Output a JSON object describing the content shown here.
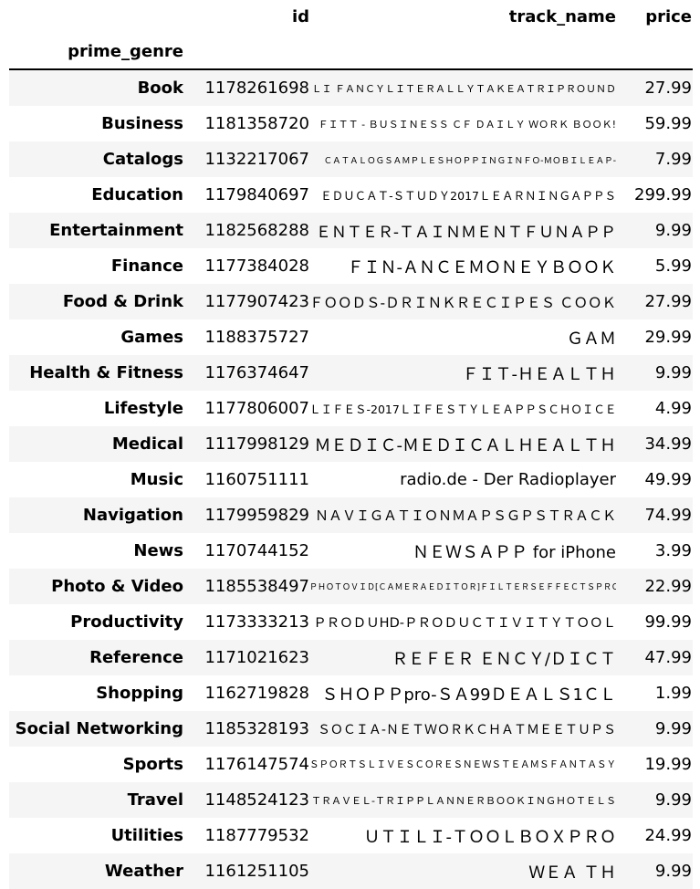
{
  "columns": {
    "id": "id",
    "track_name": "track_name",
    "price": "price",
    "index_name": "prime_genre"
  },
  "rows": [
    {
      "genre": "Book",
      "id": "1178261698",
      "track_name": "ＬＩ ＦＡＮＣＹＬＩＴＥＲＡＬＬＹＴＡＫＥＡＴＲＩＰＲＯＵＮＤ",
      "price": "27.99"
    },
    {
      "genre": "Business",
      "id": "1181358720",
      "track_name": "ＦＩＴＴ - ＢＵＳＩＮＥＳＳ ＣＦ ＤＡＩＬＹ ＷＯＲＫ ＢＯＯＫ!",
      "price": "59.99"
    },
    {
      "genre": "Catalogs",
      "id": "1132217067",
      "track_name": "ＣＡＴＡＬＯＧＳＡＭＰＬＥＳＨＯＰＰＩＮＧＩＮＦＯ-ＭＯＢＩＬＥＡＰ-",
      "price": "7.99"
    },
    {
      "genre": "Education",
      "id": "1179840697",
      "track_name": "ＥＤＵＣＡＴ-ＳＴＵＤＹ2017ＬＥＡＲＮＩＮＧＡＰＰＳ",
      "price": "299.99"
    },
    {
      "genre": "Entertainment",
      "id": "1182568288",
      "track_name": "ＥＮＴＥＲ-ＴＡＩＮＭＥＮＴＦＵＮＡＰＰ",
      "price": "9.99"
    },
    {
      "genre": "Finance",
      "id": "1177384028",
      "track_name": "ＦＩＮ-ＡＮＣＥＭＯＮＥＹＢＯＯＫ",
      "price": "5.99"
    },
    {
      "genre": "Food & Drink",
      "id": "1177907423",
      "track_name": "ＦＯＯＤＳ-ＤＲＩＮＫＲＥＣＩＰＥＳ ＣＯＯＫ",
      "price": "27.99"
    },
    {
      "genre": "Games",
      "id": "1188375727",
      "track_name": "ＧＡＭ",
      "price": "29.99"
    },
    {
      "genre": "Health & Fitness",
      "id": "1176374647",
      "track_name": "ＦＩＴ-ＨＥＡＬＴＨ",
      "price": "9.99"
    },
    {
      "genre": "Lifestyle",
      "id": "1177806007",
      "track_name": "ＬＩＦＥＳ-2017ＬＩＦＥＳＴＹＬＥＡＰＰＳＣＨＯＩＣＥ",
      "price": "4.99"
    },
    {
      "genre": "Medical",
      "id": "1117998129",
      "track_name": "ＭＥＤＩＣ-ＭＥＤＩＣＡＬＨＥＡＬＴＨ",
      "price": "34.99"
    },
    {
      "genre": "Music",
      "id": "1160751111",
      "track_name": "radio.de - Der Radioplayer",
      "price": "49.99"
    },
    {
      "genre": "Navigation",
      "id": "1179959829",
      "track_name": "ＮＡＶＩＧＡＴＩＯＮＭＡＰＳＧＰＳＴＲＡＣＫ",
      "price": "74.99"
    },
    {
      "genre": "News",
      "id": "1170744152",
      "track_name": "ＮＥＷＳＡＰＰ for iPhone",
      "price": "3.99"
    },
    {
      "genre": "Photo & Video",
      "id": "1185538497",
      "track_name": "ＰＨＯＴＯＶＩＤ[ＣＡＭＥＲＡＥＤＩＴＯＲ]ＦＩＬＴＥＲＳＥＦＦＥＣＴＳＰＲＯ",
      "price": "22.99"
    },
    {
      "genre": "Productivity",
      "id": "1173333213",
      "track_name": "ＰＲＯＤＵHD-ＰＲＯＤＵＣＴＩＶＩＴＹＴＯＯＬ",
      "price": "99.99"
    },
    {
      "genre": "Reference",
      "id": "1171021623",
      "track_name": "ＲＥＦＥＲ ＥＮＣＹ/ＤＩＣＴ",
      "price": "47.99"
    },
    {
      "genre": "Shopping",
      "id": "1162719828",
      "track_name": "ＳＨＯＰＰpro-ＳＡ99ＤＥＡＬＳ1ＣＬ",
      "price": "1.99"
    },
    {
      "genre": "Social Networking",
      "id": "1185328193",
      "track_name": "ＳＯＣＩＡ-ＮＥＴＷＯＲＫＣＨＡＴＭＥＥＴＵＰＳ",
      "price": "9.99"
    },
    {
      "genre": "Sports",
      "id": "1176147574",
      "track_name": "ＳＰＯＲＴＳＬＩＶＥＳＣＯＲＥＳＮＥＷＳＴＥＡＭＳＦＡＮＴＡＳＹ",
      "price": "19.99"
    },
    {
      "genre": "Travel",
      "id": "1148524123",
      "track_name": "ＴＲＡＶＥＬ-ＴＲＩＰＰＬＡＮＮＥＲＢＯＯＫＩＮＧＨＯＴＥＬＳ",
      "price": "9.99"
    },
    {
      "genre": "Utilities",
      "id": "1187779532",
      "track_name": "ＵＴＩＬＩ-ＴＯＯＬＢＯＸＰＲＯ",
      "price": "24.99"
    },
    {
      "genre": "Weather",
      "id": "1161251105",
      "track_name": "ＷＥＡ ＴＨ",
      "price": "9.99"
    }
  ]
}
